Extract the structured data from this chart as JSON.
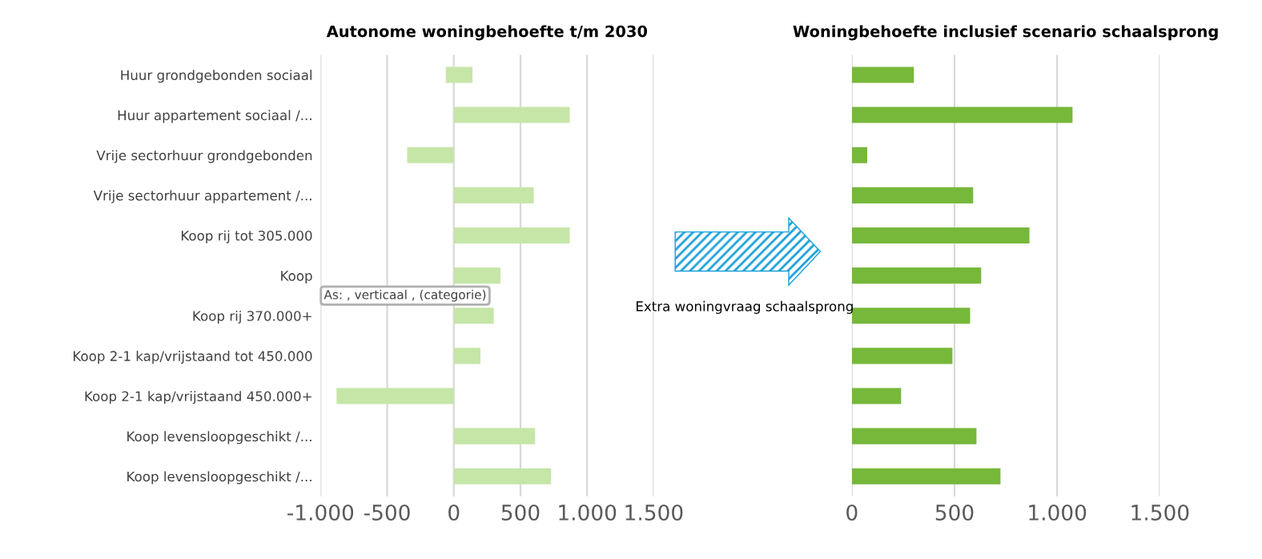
{
  "chart_data": [
    {
      "type": "bar",
      "orientation": "horizontal",
      "title": "Autonome woningbehoefte t/m 2030",
      "categories": [
        "Huur grondgebonden sociaal",
        "Huur appartement sociaal /...",
        "Vrije sectorhuur grondgebonden",
        "Vrije sectorhuur appartement /...",
        "Koop rij tot 305.000",
        "Koop",
        "Koop rij 370.000+",
        "Koop 2-1 kap/vrijstaand tot 450.000",
        "Koop 2-1 kap/vrijstaand 450.000+",
        "Koop levensloopgeschikt /...",
        "Koop levensloopgeschikt /..."
      ],
      "series": [
        {
          "color": "#c6e6a8",
          "values": [
            200,
            870,
            -350,
            600,
            870,
            350,
            300,
            200,
            -880,
            610,
            730
          ],
          "base": [
            -60,
            0,
            0,
            0,
            0,
            0,
            0,
            0,
            0,
            0,
            0
          ]
        }
      ],
      "xlim": [
        -1000,
        1500
      ],
      "xticks": [
        {
          "value": -1000,
          "label": "-1.000"
        },
        -500,
        0,
        500,
        {
          "value": 1000,
          "label": "1.000"
        },
        {
          "value": 1500,
          "label": "1.500"
        }
      ],
      "grid": "x",
      "annotations": [
        "As: , verticaal , (categorie)"
      ]
    },
    {
      "type": "bar",
      "orientation": "horizontal",
      "title": "Woningbehoefte inclusief scenario schaalsprong",
      "categories": [
        null,
        null,
        null,
        null,
        null,
        null,
        null,
        null,
        null,
        null,
        null
      ],
      "series": [
        {
          "color": "#76b83a",
          "values": [
            302,
            1075,
            75,
            591,
            865,
            630,
            576,
            490,
            240,
            607,
            724
          ]
        }
      ],
      "xlim": [
        0,
        1500
      ],
      "xticks": [
        0,
        500,
        {
          "value": 1000,
          "label": "1.000"
        },
        {
          "value": 1500,
          "label": "1.500"
        }
      ],
      "grid": "x",
      "tick_labels": "x",
      "annotations": [
        "Extra woningvraag schaalsprong"
      ]
    }
  ]
}
